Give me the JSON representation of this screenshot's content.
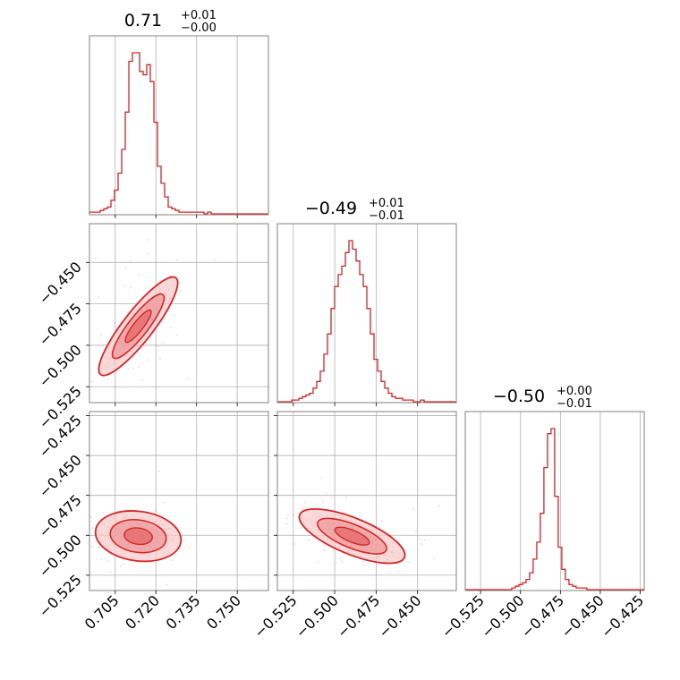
{
  "chart_data": {
    "type": "corner",
    "color": "#d62728",
    "parameters": [
      {
        "name": "",
        "range": [
          0.6955,
          0.7615
        ],
        "ticks": [
          0.705,
          0.72,
          0.735,
          0.75
        ],
        "tick_labels": [
          "0.705",
          "0.720",
          "0.735",
          "0.750"
        ]
      },
      {
        "name": "",
        "range": [
          -0.5346,
          -0.4266
        ],
        "ticks": [
          -0.525,
          -0.5,
          -0.475,
          -0.45
        ],
        "tick_labels": [
          "−0.525",
          "−0.500",
          "−0.475",
          "−0.450"
        ]
      },
      {
        "name": "",
        "range": [
          -0.5346,
          -0.4225
        ],
        "ticks": [
          -0.525,
          -0.5,
          -0.475,
          -0.45,
          -0.425
        ],
        "tick_labels": [
          "−0.525",
          "−0.500",
          "−0.475",
          "−0.450",
          "−0.425"
        ]
      }
    ],
    "titles": [
      {
        "value": "0.71",
        "plus": "+0.01",
        "minus": "−0.00"
      },
      {
        "value": "−0.49",
        "plus": "+0.01",
        "minus": "−0.01"
      },
      {
        "value": "−0.50",
        "plus": "+0.00",
        "minus": "−0.01"
      }
    ],
    "histograms": [
      {
        "param": 0,
        "bin_edges_start": 0.6955,
        "bin_width": 0.00132,
        "counts": [
          1,
          1,
          1,
          2,
          3,
          4,
          8,
          14,
          24,
          38,
          60,
          90,
          95,
          95,
          84,
          82,
          88,
          78,
          54,
          28,
          18,
          10,
          4,
          3,
          2,
          1,
          1,
          1,
          1,
          1,
          1,
          1,
          0,
          1,
          0,
          0,
          0,
          0,
          0,
          0,
          0,
          0,
          0,
          0,
          0,
          0,
          0,
          0,
          0,
          0
        ]
      },
      {
        "param": 1,
        "bin_edges_start": -0.5346,
        "bin_width": 0.00216,
        "counts": [
          0,
          0,
          0,
          0,
          1,
          1,
          2,
          3,
          4,
          5,
          8,
          12,
          18,
          28,
          40,
          55,
          68,
          75,
          80,
          88,
          95,
          90,
          83,
          75,
          68,
          55,
          40,
          25,
          18,
          12,
          8,
          5,
          3,
          2,
          2,
          1,
          1,
          1,
          0,
          0,
          1,
          0,
          0,
          0,
          0,
          0,
          0,
          0,
          0,
          0
        ]
      },
      {
        "param": 2,
        "bin_edges_start": -0.5346,
        "bin_width": 0.00224,
        "counts": [
          0,
          0,
          0,
          0,
          0,
          0,
          0,
          0,
          0,
          0,
          0,
          0,
          0,
          1,
          2,
          3,
          4,
          6,
          10,
          18,
          28,
          45,
          72,
          92,
          95,
          55,
          25,
          12,
          6,
          3,
          2,
          1,
          1,
          1,
          0,
          0,
          0,
          0,
          0,
          0,
          0,
          0,
          0,
          0,
          0,
          0,
          0,
          0,
          0,
          0
        ]
      }
    ],
    "joint": [
      {
        "x_param": 0,
        "y_param": 1,
        "mean": [
          0.7135,
          -0.4885
        ],
        "sd": [
          0.0048,
          0.0098
        ],
        "corr": 0.88
      },
      {
        "x_param": 0,
        "y_param": 2,
        "mean": [
          0.7135,
          -0.5005
        ],
        "sd": [
          0.0052,
          0.0052
        ],
        "corr": -0.15
      },
      {
        "x_param": 1,
        "y_param": 2,
        "mean": [
          -0.4895,
          -0.5005
        ],
        "sd": [
          0.0105,
          0.0056
        ],
        "corr": -0.7
      }
    ],
    "contour_levels": [
      0.39,
      0.86,
      0.99
    ],
    "grid": true
  }
}
